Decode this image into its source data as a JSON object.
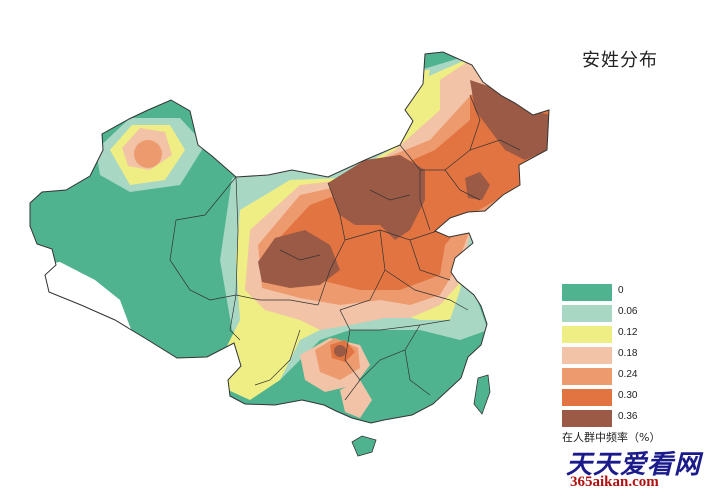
{
  "title": "安姓分布",
  "legend": {
    "caption": "在人群中频率（%）",
    "items": [
      {
        "label": "0",
        "color": "#4fb38f"
      },
      {
        "label": "0.06",
        "color": "#a8d7c4"
      },
      {
        "label": "0.12",
        "color": "#eeee84"
      },
      {
        "label": "0.18",
        "color": "#f2c3a6"
      },
      {
        "label": "0.24",
        "color": "#ec9a6e"
      },
      {
        "label": "0.30",
        "color": "#e27441"
      },
      {
        "label": "0.36",
        "color": "#9a5a45"
      }
    ]
  },
  "watermark": {
    "site_cn": "天天爱看网",
    "site_url": "365aikan.com"
  }
}
